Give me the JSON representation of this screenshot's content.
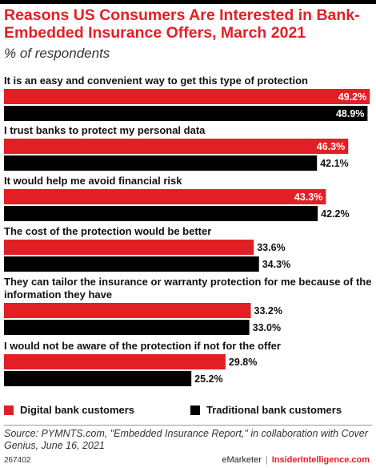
{
  "header": {
    "title": "Reasons US Consumers Are Interested in Bank-Embedded Insurance Offers, March 2021",
    "subtitle": "% of respondents"
  },
  "colors": {
    "digital": "#e31f26",
    "traditional": "#000000"
  },
  "chart_data": {
    "type": "bar",
    "orientation": "horizontal",
    "title": "Reasons US Consumers Are Interested in Bank-Embedded Insurance Offers, March 2021",
    "subtitle": "% of respondents",
    "categories": [
      "It is an easy and convenient way to get this type of protection",
      "I trust banks to protect my personal data",
      "It would help me avoid financial risk",
      "The cost of the protection would be better",
      "They can tailor the insurance or warranty protection for me because of the information they have",
      "I would not be aware of the protection if not for the offer"
    ],
    "series": [
      {
        "name": "Digital bank customers",
        "values": [
          49.2,
          46.3,
          43.3,
          33.6,
          33.2,
          29.8
        ],
        "labels": [
          "49.2%",
          "46.3%",
          "43.3%",
          "33.6%",
          "33.2%",
          "29.8%"
        ]
      },
      {
        "name": "Traditional bank customers",
        "values": [
          48.9,
          42.1,
          42.2,
          34.3,
          33.0,
          25.2
        ],
        "labels": [
          "48.9%",
          "42.1%",
          "42.2%",
          "34.3%",
          "33.0%",
          "25.2%"
        ]
      }
    ],
    "xlim": [
      0,
      49.5
    ],
    "legend": "bottom",
    "grid": false
  },
  "legend": {
    "digital_label": "Digital bank customers",
    "traditional_label": "Traditional bank customers"
  },
  "source": {
    "text": "Source: PYMNTS.com, \"Embedded Insurance Report,\" in collaboration with Cover Genius, June 16, 2021",
    "chart_id": "267402"
  },
  "footer": {
    "brand_left": "eMarketer",
    "separator": "|",
    "brand_right": "InsiderIntelligence.com"
  }
}
